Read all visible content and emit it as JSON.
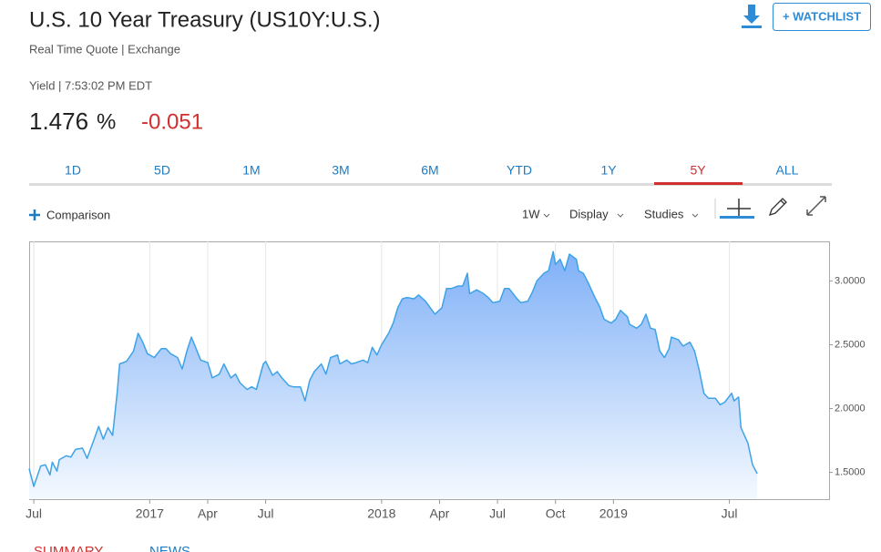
{
  "header": {
    "title": "U.S. 10 Year Treasury (US10Y:U.S.)",
    "subtitle": "Real Time Quote | Exchange",
    "watchlist": "+ WATCHLIST"
  },
  "quote": {
    "status": "Yield | 7:53:02 PM EDT",
    "last": "1.476",
    "unit": "%",
    "change": "-0.051"
  },
  "tabs": [
    "1D",
    "5D",
    "1M",
    "3M",
    "6M",
    "YTD",
    "1Y",
    "5Y",
    "ALL"
  ],
  "toolbar": {
    "comparison": "Comparison",
    "interval": "1W",
    "display": "Display",
    "studies": "Studies"
  },
  "chart_data": {
    "type": "area",
    "x": [
      2016.48,
      2016.5,
      2016.53,
      2016.55,
      2016.57,
      2016.58,
      2016.6,
      2016.61,
      2016.64,
      2016.66,
      2016.68,
      2016.71,
      2016.73,
      2016.76,
      2016.78,
      2016.8,
      2016.82,
      2016.84,
      2016.86,
      2016.87,
      2016.9,
      2016.93,
      2016.95,
      2016.97,
      2016.99,
      2017.02,
      2017.05,
      2017.07,
      2017.09,
      2017.12,
      2017.14,
      2017.16,
      2017.18,
      2017.2,
      2017.22,
      2017.25,
      2017.27,
      2017.3,
      2017.32,
      2017.35,
      2017.37,
      2017.39,
      2017.42,
      2017.44,
      2017.46,
      2017.49,
      2017.5,
      2017.53,
      2017.55,
      2017.57,
      2017.6,
      2017.62,
      2017.65,
      2017.67,
      2017.69,
      2017.71,
      2017.74,
      2017.76,
      2017.78,
      2017.81,
      2017.82,
      2017.85,
      2017.87,
      2017.89,
      2017.92,
      2017.94,
      2017.96,
      2017.98,
      2018.0,
      2018.03,
      2018.05,
      2018.07,
      2018.09,
      2018.11,
      2018.14,
      2018.16,
      2018.19,
      2018.21,
      2018.23,
      2018.26,
      2018.28,
      2018.3,
      2018.33,
      2018.35,
      2018.37,
      2018.38,
      2018.41,
      2018.44,
      2018.46,
      2018.48,
      2018.51,
      2018.53,
      2018.55,
      2018.58,
      2018.6,
      2018.63,
      2018.65,
      2018.67,
      2018.7,
      2018.72,
      2018.74,
      2018.75,
      2018.77,
      2018.79,
      2018.81,
      2018.84,
      2018.85,
      2018.87,
      2018.89,
      2018.92,
      2018.94,
      2018.96,
      2018.99,
      2019.01,
      2019.03,
      2019.06,
      2019.07,
      2019.1,
      2019.12,
      2019.14,
      2019.16,
      2019.18,
      2019.2,
      2019.22,
      2019.24,
      2019.25,
      2019.28,
      2019.3,
      2019.33,
      2019.35,
      2019.37,
      2019.39,
      2019.41,
      2019.44,
      2019.46,
      2019.48,
      2019.51,
      2019.52,
      2019.54,
      2019.55,
      2019.58,
      2019.6,
      2019.62
    ],
    "values": [
      1.53,
      1.39,
      1.55,
      1.56,
      1.48,
      1.58,
      1.51,
      1.6,
      1.63,
      1.62,
      1.68,
      1.69,
      1.61,
      1.76,
      1.86,
      1.76,
      1.85,
      1.79,
      2.13,
      2.35,
      2.37,
      2.45,
      2.59,
      2.52,
      2.43,
      2.4,
      2.47,
      2.47,
      2.43,
      2.4,
      2.31,
      2.45,
      2.56,
      2.47,
      2.38,
      2.36,
      2.24,
      2.27,
      2.35,
      2.24,
      2.27,
      2.2,
      2.15,
      2.17,
      2.15,
      2.35,
      2.37,
      2.26,
      2.29,
      2.24,
      2.18,
      2.17,
      2.17,
      2.06,
      2.22,
      2.29,
      2.35,
      2.27,
      2.4,
      2.42,
      2.35,
      2.38,
      2.35,
      2.36,
      2.38,
      2.36,
      2.48,
      2.42,
      2.5,
      2.59,
      2.67,
      2.79,
      2.86,
      2.87,
      2.86,
      2.89,
      2.84,
      2.79,
      2.74,
      2.79,
      2.94,
      2.94,
      2.96,
      2.96,
      3.06,
      2.9,
      2.93,
      2.9,
      2.87,
      2.83,
      2.84,
      2.94,
      2.94,
      2.87,
      2.83,
      2.84,
      2.91,
      3.0,
      3.06,
      3.08,
      3.23,
      3.13,
      3.17,
      3.08,
      3.21,
      3.17,
      3.08,
      3.06,
      2.99,
      2.87,
      2.8,
      2.7,
      2.67,
      2.7,
      2.77,
      2.72,
      2.66,
      2.63,
      2.66,
      2.74,
      2.63,
      2.62,
      2.45,
      2.4,
      2.47,
      2.56,
      2.54,
      2.49,
      2.52,
      2.45,
      2.3,
      2.12,
      2.08,
      2.08,
      2.03,
      2.05,
      2.12,
      2.06,
      2.09,
      1.85,
      1.73,
      1.56,
      1.49
    ],
    "color": "#3ea3e6",
    "xlim": [
      2016.48,
      2019.93
    ],
    "ylim": [
      1.29,
      3.31
    ],
    "xticks": [
      {
        "value": 2016.5,
        "label": "Jul"
      },
      2017,
      {
        "value": 2017.25,
        "label": "Apr"
      },
      {
        "value": 2017.5,
        "label": "Jul"
      },
      2018,
      {
        "value": 2018.25,
        "label": "Apr"
      },
      {
        "value": 2018.5,
        "label": "Jul"
      },
      {
        "value": 2018.75,
        "label": "Oct"
      },
      2019,
      {
        "value": 2019.5,
        "label": "Jul"
      }
    ],
    "yticks": [
      {
        "value": 1.5,
        "label": "1.5000"
      },
      {
        "value": 2,
        "label": "2.0000"
      },
      {
        "value": 2.5,
        "label": "2.5000"
      },
      {
        "value": 3,
        "label": "3.0000"
      }
    ],
    "xgrid": true
  },
  "bottom_tabs": [
    "SUMMARY",
    "NEWS"
  ]
}
